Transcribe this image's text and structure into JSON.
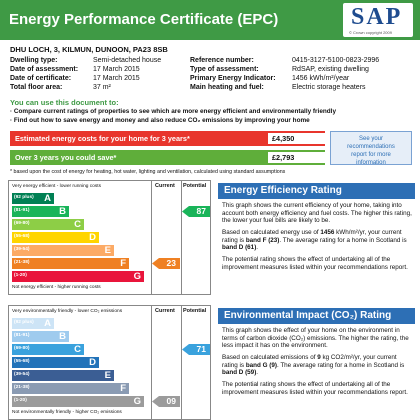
{
  "header": {
    "title": "Energy Performance Certificate (EPC)",
    "logo": "SAP",
    "logo_note": "© Crown copyright 2009"
  },
  "property": {
    "address": "DHU LOCH, 3, KILMUN, DUNOON, PA23 8SB",
    "left_fields": [
      {
        "label": "Dwelling type:",
        "value": "Semi-detached house"
      },
      {
        "label": "Date of assessment:",
        "value": "17 March 2015"
      },
      {
        "label": "Date of certificate:",
        "value": "17 March 2015"
      },
      {
        "label": "Total floor area:",
        "value": "37 m²"
      }
    ],
    "right_fields": [
      {
        "label": "Reference number:",
        "value": "0415-3127-5100-0823-2996"
      },
      {
        "label": "Type of assessment:",
        "value": "RdSAP, existing dwelling"
      },
      {
        "label": "Primary Energy Indicator:",
        "value": "1456 kWh/m²/year"
      },
      {
        "label": "Main heating and fuel:",
        "value": "Electric storage heaters"
      }
    ]
  },
  "uses": {
    "heading": "You can use this document to:",
    "bullets": [
      "Compare current ratings of properties to see which are more energy efficient and environmentally friendly",
      "Find out how to save energy and money and also reduce CO₂ emissions by improving your home"
    ]
  },
  "costs": {
    "rows": [
      {
        "label": "Estimated energy costs for your home for 3 years*",
        "value": "£4,350"
      },
      {
        "label": "Over 3 years you could save*",
        "value": "£2,793"
      }
    ],
    "side_note": "See your recommendations report for more information",
    "footnote": "* based upon the cost of energy for heating, hot water, lighting and ventilation, calculated using standard assumptions"
  },
  "charts": [
    {
      "top_text": "Very energy efficient - lower running costs",
      "bottom_text": "Not energy efficient - higher running costs",
      "current_label": "Current",
      "potential_label": "Potential",
      "bands": [
        {
          "range": "(92 plus)",
          "letter": "A"
        },
        {
          "range": "(81-91)",
          "letter": "B"
        },
        {
          "range": "(69-80)",
          "letter": "C"
        },
        {
          "range": "(55-68)",
          "letter": "D"
        },
        {
          "range": "(39-54)",
          "letter": "E"
        },
        {
          "range": "(21-38)",
          "letter": "F"
        },
        {
          "range": "(1-20)",
          "letter": "G"
        }
      ],
      "current": "23",
      "potential": "87",
      "heading": "Energy Efficiency Rating",
      "paragraphs": [
        [
          "This graph shows the current efficiency of your home, taking into account both energy efficiency and fuel costs. The higher this rating, the lower your fuel bills are likely to be."
        ],
        [
          "Based on calculated energy use of ",
          "1456",
          " kWh/m²/yr, your current rating is ",
          "band F (23)",
          ". The average rating for a home in Scotland is ",
          "band D (61)",
          "."
        ],
        [
          "The potential rating shows the effect of undertaking all of the improvement measures listed within your recommendations report."
        ]
      ]
    },
    {
      "top_text": "Very environmentally friendly - lower CO₂ emissions",
      "bottom_text": "Not environmentally friendly - higher CO₂ emissions",
      "current_label": "Current",
      "potential_label": "Potential",
      "bands": [
        {
          "range": "(92 plus)",
          "letter": "A"
        },
        {
          "range": "(81-91)",
          "letter": "B"
        },
        {
          "range": "(69-80)",
          "letter": "C"
        },
        {
          "range": "(55-68)",
          "letter": "D"
        },
        {
          "range": "(39-54)",
          "letter": "E"
        },
        {
          "range": "(21-38)",
          "letter": "F"
        },
        {
          "range": "(1-20)",
          "letter": "G"
        }
      ],
      "current": "09",
      "potential": "71",
      "heading": "Environmental Impact (CO₂) Rating",
      "paragraphs": [
        [
          "This graph shows the effect of your home on the environment in terms of carbon dioxide (CO₂) emissions. The higher the rating, the less impact it has on the environment."
        ],
        [
          "Based on calculated emissions of ",
          "9",
          " kg CO2/m²/yr, your current rating is ",
          "band G (9)",
          ". The average rating for a home in Scotland is ",
          "band D (59)",
          "."
        ],
        [
          "The potential rating shows the effect of undertaking all of the improvement measures listed within your recommendations report."
        ]
      ]
    }
  ]
}
